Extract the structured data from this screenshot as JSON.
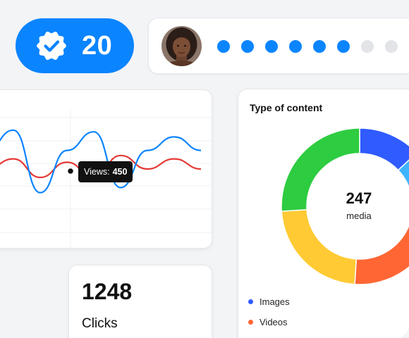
{
  "badge": {
    "count": "20",
    "color": "#0a84ff",
    "icon": "verified-check-icon"
  },
  "progress": {
    "completed": 6,
    "total": 8,
    "active_color": "#0a84ff",
    "inactive_color": "#e2e4e8"
  },
  "tooltip": {
    "label": "Views:",
    "value": "450"
  },
  "chart_data": {
    "type": "line",
    "series": [
      {
        "color": "#0a84ff",
        "values": [
          0.62,
          0.86,
          0.12,
          0.62,
          0.84,
          0.18,
          0.62,
          0.78,
          0.62
        ]
      },
      {
        "color": "#e53935",
        "values": [
          0.4,
          0.52,
          0.3,
          0.48,
          0.3,
          0.56,
          0.4,
          0.52,
          0.4
        ]
      }
    ],
    "tooltip_point": {
      "series": 0,
      "index": 2
    }
  },
  "donut": {
    "title": "Type of content",
    "total": "247",
    "unit": "media",
    "segments": [
      {
        "label": "Images",
        "color": "#2f5bff",
        "value": 13
      },
      {
        "label": "",
        "color": "#3db5ff",
        "value": 16
      },
      {
        "label": "Videos",
        "color": "#ff6633",
        "value": 22
      },
      {
        "label": "",
        "color": "#ffca33",
        "value": 23
      },
      {
        "label": "",
        "color": "#2ecc40",
        "value": 26
      }
    ],
    "legend": [
      {
        "label": "Images",
        "color": "#2f5bff"
      },
      {
        "label": "Videos",
        "color": "#ff6633"
      }
    ]
  },
  "clicks": {
    "value": "1248",
    "label": "Clicks"
  }
}
